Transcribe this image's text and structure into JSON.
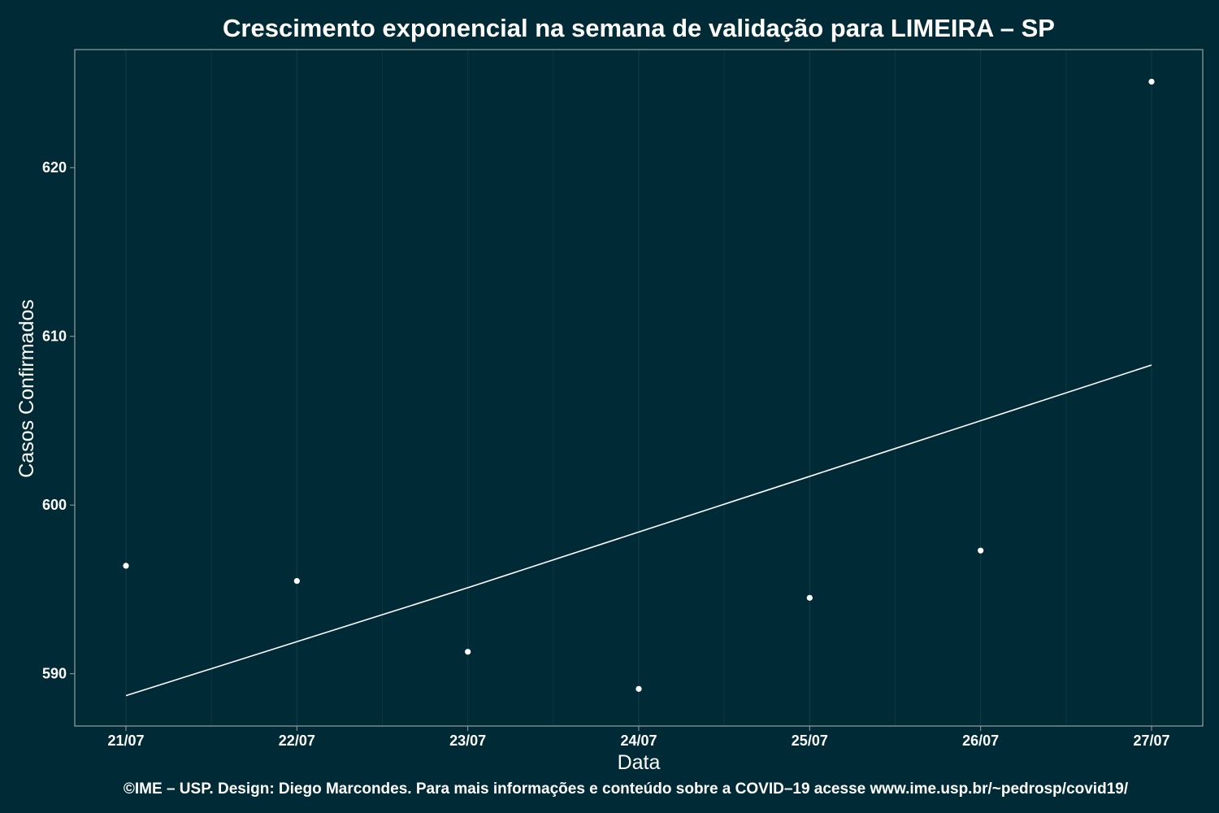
{
  "chart_data": {
    "type": "scatter",
    "title": "Crescimento exponencial na semana de validação para LIMEIRA – SP",
    "xlabel": "Data",
    "ylabel": "Casos Confirmados",
    "caption": "©IME – USP. Design: Diego Marcondes. Para mais informações e conteúdo sobre a COVID–19 acesse www.ime.usp.br/~pedrosp/covid19/",
    "categories": [
      "21/07",
      "22/07",
      "23/07",
      "24/07",
      "25/07",
      "26/07",
      "27/07"
    ],
    "series": [
      {
        "type": "scatter",
        "values": [
          596.4,
          595.5,
          591.3,
          589.1,
          594.5,
          597.3,
          625.1
        ]
      },
      {
        "type": "line",
        "values": [
          588.7,
          591.9,
          595.1,
          598.4,
          601.7,
          605.0,
          608.3
        ]
      }
    ],
    "yticks": [
      590,
      600,
      610,
      620
    ],
    "ylim": [
      586.9,
      627
    ],
    "grid": true,
    "colors": {
      "background": "#002b36",
      "panel_border": "#93a1a1",
      "grid": "#0d3a44",
      "points": "#ffffff",
      "line": "#ffffff"
    }
  }
}
